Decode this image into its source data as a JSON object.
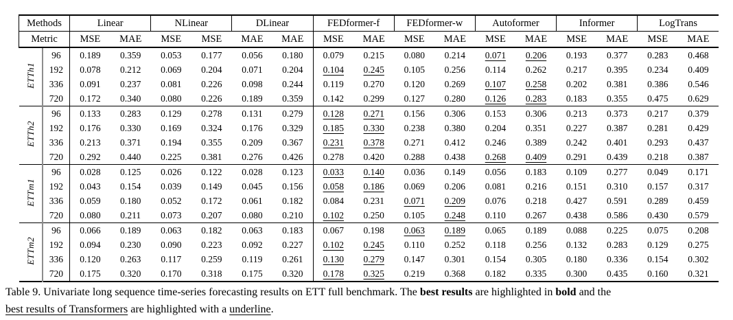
{
  "table": {
    "methods_label": "Methods",
    "metric_label": "Metric",
    "groups": [
      {
        "name": "Linear",
        "metrics": [
          "MSE",
          "MAE"
        ]
      },
      {
        "name": "NLinear",
        "metrics": [
          "MSE",
          "MSE"
        ]
      },
      {
        "name": "DLinear",
        "metrics": [
          "MAE",
          "MAE"
        ]
      },
      {
        "name": "FEDformer-f",
        "metrics": [
          "MSE",
          "MAE"
        ]
      },
      {
        "name": "FEDformer-w",
        "metrics": [
          "MSE",
          "MAE"
        ]
      },
      {
        "name": "Autoformer",
        "metrics": [
          "MSE",
          "MAE"
        ]
      },
      {
        "name": "Informer",
        "metrics": [
          "MSE",
          "MAE"
        ]
      },
      {
        "name": "LogTrans",
        "metrics": [
          "MSE",
          "MAE"
        ]
      }
    ],
    "datasets": [
      {
        "name": "ETTh1",
        "rows": [
          {
            "horizon": "96",
            "values": [
              "0.189",
              "0.359",
              "0.053",
              "0.177",
              "0.056",
              "0.180",
              "0.079",
              "0.215",
              "0.080",
              "0.214",
              "0.071",
              "0.206",
              "0.193",
              "0.377",
              "0.283",
              "0.468"
            ],
            "bold": [
              2,
              3
            ],
            "underline": [
              10,
              11
            ]
          },
          {
            "horizon": "192",
            "values": [
              "0.078",
              "0.212",
              "0.069",
              "0.204",
              "0.071",
              "0.204",
              "0.104",
              "0.245",
              "0.105",
              "0.256",
              "0.114",
              "0.262",
              "0.217",
              "0.395",
              "0.234",
              "0.409"
            ],
            "bold": [
              2,
              3
            ],
            "underline": [
              6,
              7
            ]
          },
          {
            "horizon": "336",
            "values": [
              "0.091",
              "0.237",
              "0.081",
              "0.226",
              "0.098",
              "0.244",
              "0.119",
              "0.270",
              "0.120",
              "0.269",
              "0.107",
              "0.258",
              "0.202",
              "0.381",
              "0.386",
              "0.546"
            ],
            "bold": [
              2,
              3
            ],
            "underline": [
              10,
              11
            ]
          },
          {
            "horizon": "720",
            "values": [
              "0.172",
              "0.340",
              "0.080",
              "0.226",
              "0.189",
              "0.359",
              "0.142",
              "0.299",
              "0.127",
              "0.280",
              "0.126",
              "0.283",
              "0.183",
              "0.355",
              "0.475",
              "0.629"
            ],
            "bold": [
              2,
              3
            ],
            "underline": [
              10,
              11
            ]
          }
        ]
      },
      {
        "name": "ETTh2",
        "rows": [
          {
            "horizon": "96",
            "values": [
              "0.133",
              "0.283",
              "0.129",
              "0.278",
              "0.131",
              "0.279",
              "0.128",
              "0.271",
              "0.156",
              "0.306",
              "0.153",
              "0.306",
              "0.213",
              "0.373",
              "0.217",
              "0.379"
            ],
            "bold": [
              2,
              3
            ],
            "underline": [
              6,
              7
            ]
          },
          {
            "horizon": "192",
            "values": [
              "0.176",
              "0.330",
              "0.169",
              "0.324",
              "0.176",
              "0.329",
              "0.185",
              "0.330",
              "0.238",
              "0.380",
              "0.204",
              "0.351",
              "0.227",
              "0.387",
              "0.281",
              "0.429"
            ],
            "bold": [
              2,
              3
            ],
            "underline": [
              6,
              7
            ]
          },
          {
            "horizon": "336",
            "values": [
              "0.213",
              "0.371",
              "0.194",
              "0.355",
              "0.209",
              "0.367",
              "0.231",
              "0.378",
              "0.271",
              "0.412",
              "0.246",
              "0.389",
              "0.242",
              "0.401",
              "0.293",
              "0.437"
            ],
            "bold": [
              2,
              3
            ],
            "underline": [
              6,
              7
            ]
          },
          {
            "horizon": "720",
            "values": [
              "0.292",
              "0.440",
              "0.225",
              "0.381",
              "0.276",
              "0.426",
              "0.278",
              "0.420",
              "0.288",
              "0.438",
              "0.268",
              "0.409",
              "0.291",
              "0.439",
              "0.218",
              "0.387"
            ],
            "bold": [
              2,
              3
            ],
            "underline": [
              10,
              11
            ]
          }
        ]
      },
      {
        "name": "ETTm1",
        "rows": [
          {
            "horizon": "96",
            "values": [
              "0.028",
              "0.125",
              "0.026",
              "0.122",
              "0.028",
              "0.123",
              "0.033",
              "0.140",
              "0.036",
              "0.149",
              "0.056",
              "0.183",
              "0.109",
              "0.277",
              "0.049",
              "0.171"
            ],
            "bold": [
              2,
              3
            ],
            "underline": [
              6,
              7
            ]
          },
          {
            "horizon": "192",
            "values": [
              "0.043",
              "0.154",
              "0.039",
              "0.149",
              "0.045",
              "0.156",
              "0.058",
              "0.186",
              "0.069",
              "0.206",
              "0.081",
              "0.216",
              "0.151",
              "0.310",
              "0.157",
              "0.317"
            ],
            "bold": [
              2,
              3
            ],
            "underline": [
              6,
              7
            ]
          },
          {
            "horizon": "336",
            "values": [
              "0.059",
              "0.180",
              "0.052",
              "0.172",
              "0.061",
              "0.182",
              "0.084",
              "0.231",
              "0.071",
              "0.209",
              "0.076",
              "0.218",
              "0.427",
              "0.591",
              "0.289",
              "0.459"
            ],
            "bold": [
              2,
              3
            ],
            "underline": [
              8,
              9
            ]
          },
          {
            "horizon": "720",
            "values": [
              "0.080",
              "0.211",
              "0.073",
              "0.207",
              "0.080",
              "0.210",
              "0.102",
              "0.250",
              "0.105",
              "0.248",
              "0.110",
              "0.267",
              "0.438",
              "0.586",
              "0.430",
              "0.579"
            ],
            "bold": [
              2,
              3
            ],
            "underline": [
              6,
              9
            ]
          }
        ]
      },
      {
        "name": "ETTm2",
        "rows": [
          {
            "horizon": "96",
            "values": [
              "0.066",
              "0.189",
              "0.063",
              "0.182",
              "0.063",
              "0.183",
              "0.067",
              "0.198",
              "0.063",
              "0.189",
              "0.065",
              "0.189",
              "0.088",
              "0.225",
              "0.075",
              "0.208"
            ],
            "bold": [
              2,
              3
            ],
            "underline": [
              8,
              9
            ]
          },
          {
            "horizon": "192",
            "values": [
              "0.094",
              "0.230",
              "0.090",
              "0.223",
              "0.092",
              "0.227",
              "0.102",
              "0.245",
              "0.110",
              "0.252",
              "0.118",
              "0.256",
              "0.132",
              "0.283",
              "0.129",
              "0.275"
            ],
            "bold": [
              2,
              3
            ],
            "underline": [
              6,
              7
            ]
          },
          {
            "horizon": "336",
            "values": [
              "0.120",
              "0.263",
              "0.117",
              "0.259",
              "0.119",
              "0.261",
              "0.130",
              "0.279",
              "0.147",
              "0.301",
              "0.154",
              "0.305",
              "0.180",
              "0.336",
              "0.154",
              "0.302"
            ],
            "bold": [
              2,
              3
            ],
            "underline": [
              6,
              7
            ]
          },
          {
            "horizon": "720",
            "values": [
              "0.175",
              "0.320",
              "0.170",
              "0.318",
              "0.175",
              "0.320",
              "0.178",
              "0.325",
              "0.219",
              "0.368",
              "0.182",
              "0.335",
              "0.300",
              "0.435",
              "0.160",
              "0.321"
            ],
            "bold": [
              2,
              3
            ],
            "underline": [
              6,
              7
            ]
          }
        ]
      }
    ]
  },
  "caption": {
    "segments": [
      {
        "text": "Table 9. Univariate long sequence time-series forecasting results on ETT full benchmark. The ",
        "style": "plain"
      },
      {
        "text": "best results",
        "style": "bold"
      },
      {
        "text": " are highlighted in ",
        "style": "plain"
      },
      {
        "text": "bold",
        "style": "bold"
      },
      {
        "text": " and the",
        "style": "plain"
      },
      {
        "text": "",
        "style": "break"
      },
      {
        "text": "best results of Transformers",
        "style": "underline"
      },
      {
        "text": " are highlighted with a ",
        "style": "plain"
      },
      {
        "text": "underline",
        "style": "underline"
      },
      {
        "text": ".",
        "style": "plain"
      }
    ]
  },
  "colors": {
    "text": "#000000",
    "background": "#ffffff",
    "rule": "#000000",
    "dataset_divider": "#8c8c8c"
  }
}
